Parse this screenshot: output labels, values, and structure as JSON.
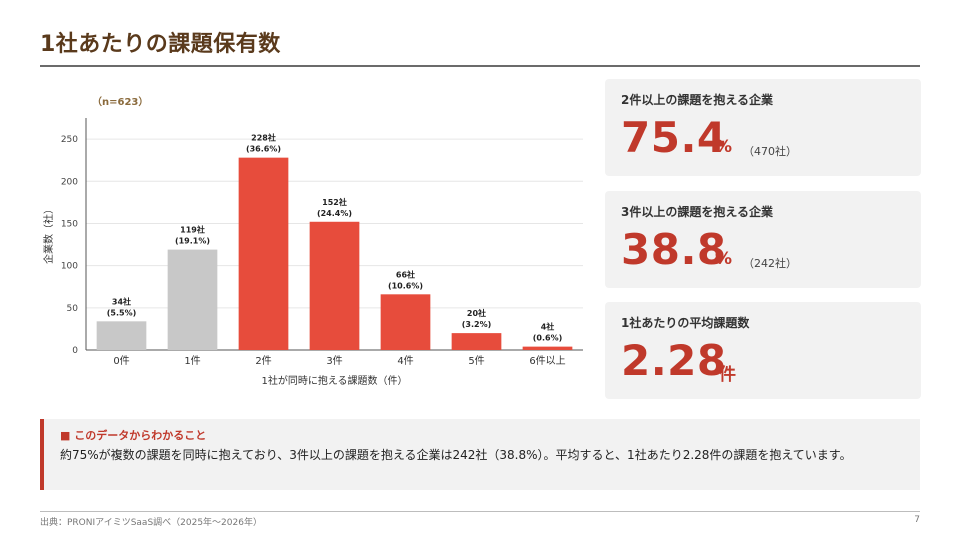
{
  "page": {
    "title": "1社あたりの課題保有数",
    "source": "出典：PRONIアイミツSaaS調べ（2025年〜2026年）",
    "page_number": "7"
  },
  "chart_data": {
    "type": "bar",
    "sample_note": "（n=623）",
    "categories": [
      "0件",
      "1件",
      "2件",
      "3件",
      "4件",
      "5件",
      "6件以上"
    ],
    "values": [
      34,
      119,
      228,
      152,
      66,
      20,
      4
    ],
    "value_labels": [
      "34社",
      "119社",
      "228社",
      "152社",
      "66社",
      "20社",
      "4社"
    ],
    "percent_labels": [
      "(5.5%)",
      "(19.1%)",
      "(36.6%)",
      "(24.4%)",
      "(10.6%)",
      "(3.2%)",
      "(0.6%)"
    ],
    "xlabel": "1社が同時に抱える課題数（件）",
    "ylabel": "企業数（社）",
    "ylim": [
      0,
      275
    ],
    "yticks": [
      0,
      50,
      100,
      150,
      200,
      250
    ],
    "grid": true,
    "colors": {
      "gray": "#c8c8c8",
      "red": "#e74c3c"
    },
    "bar_colors": [
      "gray",
      "gray",
      "red",
      "red",
      "red",
      "red",
      "red"
    ]
  },
  "cards": [
    {
      "label": "2件以上の課題を抱える企業",
      "value": "75.4",
      "unit": "%",
      "sub": "（470社）"
    },
    {
      "label": "3件以上の課題を抱える企業",
      "value": "38.8",
      "unit": "%",
      "sub": "（242社）"
    },
    {
      "label": "1社あたりの平均課題数",
      "value": "2.28",
      "unit": "件",
      "sub": ""
    }
  ],
  "finding": {
    "heading": "■ このデータからわかること",
    "body": "約75%が複数の課題を同時に抱えており、3件以上の課題を抱える企業は242社（38.8%）。平均すると、1社あたり2.28件の課題を抱えています。"
  }
}
